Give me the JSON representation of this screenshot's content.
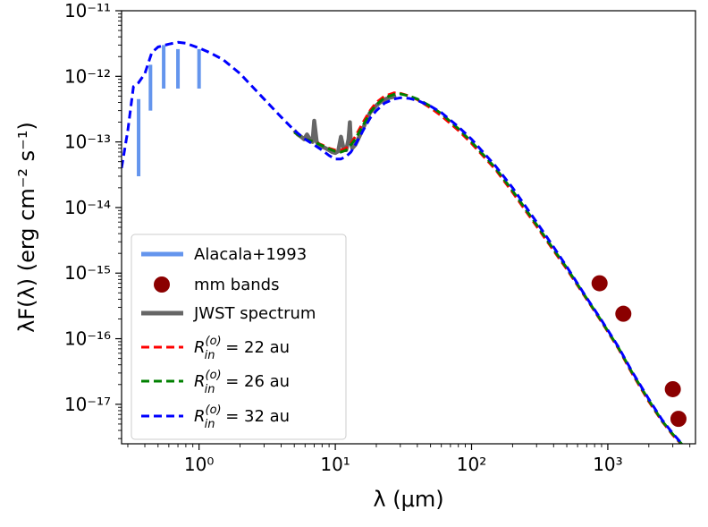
{
  "chart_data": {
    "type": "line",
    "xlabel": "λ (μm)",
    "ylabel": "λF(λ) (erg cm⁻² s⁻¹)",
    "xscale": "log",
    "yscale": "log",
    "xlim": [
      0.27,
      4400
    ],
    "ylim": [
      2.5e-18,
      1e-11
    ],
    "x_tick_labels": [
      "10⁰",
      "10¹",
      "10²",
      "10³"
    ],
    "x_tick_values": [
      1,
      10,
      100,
      1000
    ],
    "y_tick_labels": [
      "10⁻¹¹",
      "10⁻¹²",
      "10⁻¹³",
      "10⁻¹⁴",
      "10⁻¹⁵",
      "10⁻¹⁶",
      "10⁻¹⁷"
    ],
    "y_tick_values": [
      1e-11,
      1e-12,
      1e-13,
      1e-14,
      1e-15,
      1e-16,
      1e-17
    ],
    "grid": false,
    "legend_placement": "lower-left",
    "legend": [
      {
        "label": "Alacala+1993",
        "kind": "bar",
        "color": "#6495ED"
      },
      {
        "label": "mm bands",
        "kind": "point",
        "color": "#8B0000"
      },
      {
        "label": "JWST spectrum",
        "kind": "line",
        "color": "#666666"
      },
      {
        "label": "R_in^(o) = 22 au",
        "main": "R",
        "sup": "(o)",
        "sub": "in",
        "rest": " = 22 au",
        "kind": "dashed",
        "color": "#ff0000"
      },
      {
        "label": "R_in^(o) = 26 au",
        "main": "R",
        "sup": "(o)",
        "sub": "in",
        "rest": " = 26 au",
        "kind": "dashed",
        "color": "#008000"
      },
      {
        "label": "R_in^(o) = 32 au",
        "main": "R",
        "sup": "(o)",
        "sub": "in",
        "rest": " = 32 au",
        "kind": "dashed",
        "color": "#0000ff"
      }
    ],
    "alacala_bars": [
      {
        "x": 0.36,
        "ylow": 3e-14,
        "yhigh": 4.5e-13
      },
      {
        "x": 0.44,
        "ylow": 3e-13,
        "yhigh": 1.5e-12
      },
      {
        "x": 0.55,
        "ylow": 6.5e-13,
        "yhigh": 3e-12
      },
      {
        "x": 0.7,
        "ylow": 6.5e-13,
        "yhigh": 2.6e-12
      },
      {
        "x": 1.0,
        "ylow": 6.5e-13,
        "yhigh": 2.6e-12
      }
    ],
    "mm_points": [
      {
        "x": 870,
        "y": 7e-16
      },
      {
        "x": 1300,
        "y": 2.4e-16
      },
      {
        "x": 3000,
        "y": 1.7e-17
      },
      {
        "x": 3300,
        "y": 6e-18
      }
    ],
    "jwst_spectrum": {
      "x": [
        5.0,
        5.3,
        5.6,
        5.9,
        6.2,
        6.5,
        6.8,
        7.0,
        7.3,
        7.6,
        8.0,
        8.5,
        9.0,
        9.5,
        10.0,
        10.5,
        11.0,
        11.5,
        12.0,
        12.5,
        12.8,
        13.0,
        13.3,
        14.0,
        15.0,
        16.0,
        17.0,
        18.0,
        20.0,
        22.0,
        24.0,
        26.0,
        28.0
      ],
      "y": [
        1.5e-13,
        1.3e-13,
        1.2e-13,
        1.1e-13,
        1.3e-13,
        1.1e-13,
        1e-13,
        2.1e-13,
        1e-13,
        9e-14,
        8.5e-14,
        8e-14,
        7.5e-14,
        7e-14,
        6.8e-14,
        7.2e-14,
        1.2e-13,
        8e-14,
        7.5e-14,
        1.1e-13,
        2e-13,
        1e-13,
        8e-14,
        9e-14,
        1.2e-13,
        1.6e-13,
        2.2e-13,
        2.8e-13,
        3.6e-13,
        4.2e-13,
        4.6e-13,
        4.8e-13,
        5e-13
      ]
    },
    "series": [
      {
        "color": "#ff0000",
        "x": [
          5,
          6,
          7,
          8,
          9,
          10,
          11,
          12,
          13,
          14,
          16,
          18,
          20,
          23,
          27,
          30,
          35,
          40,
          50,
          60,
          80,
          100,
          150,
          200,
          300,
          400,
          500,
          700,
          900,
          1200,
          1500,
          2000,
          2500,
          3000,
          3500,
          4000,
          4400
        ],
        "y": [
          1.4e-13,
          1.1e-13,
          1e-13,
          9e-14,
          8e-14,
          7.5e-14,
          7.5e-14,
          8e-14,
          9.5e-14,
          1.2e-13,
          2e-13,
          3e-13,
          4e-13,
          5e-13,
          5.6e-13,
          5.5e-13,
          5e-13,
          4.4e-13,
          3.3e-13,
          2.5e-13,
          1.5e-13,
          9.5e-14,
          3.8e-14,
          1.7e-14,
          5.2e-15,
          2.2e-15,
          1.15e-15,
          4e-16,
          1.8e-16,
          7e-17,
          3e-17,
          1.1e-17,
          5.5e-18,
          3.4e-18,
          2.4e-18,
          1.8e-18,
          1.5e-18
        ]
      },
      {
        "color": "#008000",
        "x": [
          5,
          6,
          7,
          8,
          9,
          10,
          11,
          12,
          13,
          14,
          16,
          18,
          20,
          23,
          27,
          30,
          35,
          40,
          50,
          60,
          80,
          100,
          150,
          200,
          300,
          400,
          500,
          700,
          900,
          1200,
          1500,
          2000,
          2500,
          3000,
          3500,
          4000,
          4400
        ],
        "y": [
          1.4e-13,
          1.1e-13,
          1e-13,
          8.8e-14,
          7.8e-14,
          7.2e-14,
          7e-14,
          7.5e-14,
          9e-14,
          1.1e-13,
          1.8e-13,
          2.8e-13,
          3.7e-13,
          4.7e-13,
          5.3e-13,
          5.4e-13,
          5e-13,
          4.5e-13,
          3.5e-13,
          2.7e-13,
          1.6e-13,
          1e-13,
          4e-14,
          1.8e-14,
          5.5e-15,
          2.3e-15,
          1.2e-15,
          4.1e-16,
          1.85e-16,
          7.2e-17,
          3.1e-17,
          1.15e-17,
          5.6e-18,
          3.5e-18,
          2.45e-18,
          1.85e-18,
          1.5e-18
        ]
      },
      {
        "color": "#0000ff",
        "x": [
          0.27,
          0.3,
          0.33,
          0.36,
          0.4,
          0.45,
          0.5,
          0.6,
          0.7,
          0.8,
          1.0,
          1.2,
          1.5,
          2.0,
          3.0,
          4.0,
          5.0,
          6.0,
          7.0,
          8.0,
          9.0,
          10,
          11,
          12,
          13,
          14,
          16,
          18,
          20,
          23,
          27,
          30,
          35,
          40,
          50,
          60,
          80,
          100,
          150,
          200,
          300,
          400,
          500,
          700,
          900,
          1200,
          1500,
          2000,
          2500,
          3000,
          3500,
          4000,
          4400
        ],
        "y": [
          4e-14,
          1.5e-13,
          7e-13,
          8e-13,
          1.1e-12,
          2.3e-12,
          2.8e-12,
          3.1e-12,
          3.3e-12,
          3.2e-12,
          2.7e-12,
          2.3e-12,
          1.8e-12,
          1.1e-12,
          4.5e-13,
          2.4e-13,
          1.5e-13,
          1.1e-13,
          9e-14,
          7.5e-14,
          6.2e-14,
          5.5e-14,
          5.5e-14,
          6e-14,
          7e-14,
          9e-14,
          1.5e-13,
          2.3e-13,
          3e-13,
          3.9e-13,
          4.5e-13,
          4.7e-13,
          4.6e-13,
          4.3e-13,
          3.5e-13,
          2.8e-13,
          1.7e-13,
          1.1e-13,
          4.3e-14,
          2e-14,
          6e-15,
          2.5e-15,
          1.25e-15,
          4.2e-16,
          1.9e-16,
          7.4e-17,
          3.2e-17,
          1.2e-17,
          5.8e-18,
          3.6e-18,
          2.5e-18,
          1.9e-18,
          1.55e-18
        ]
      }
    ]
  }
}
